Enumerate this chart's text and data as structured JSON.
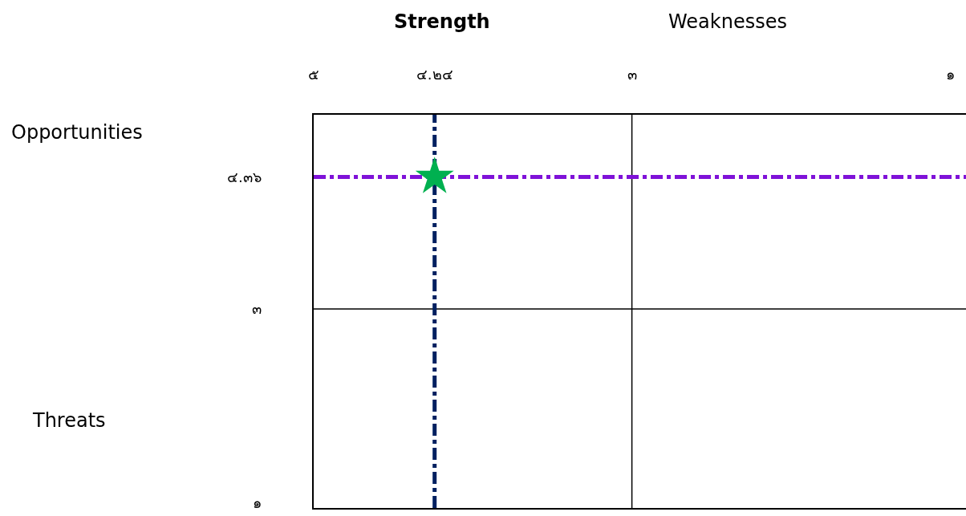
{
  "chart_data": {
    "type": "scatter",
    "annotations": [
      "Strength",
      "Weaknesses",
      "Opportunities",
      "Threats"
    ],
    "series": [
      {
        "color": "#00b050",
        "x": [
          4.24
        ],
        "values": [
          4.36
        ]
      }
    ],
    "marker": "star",
    "legend": false,
    "grid": false,
    "xlim": [
      5,
      0.9
    ],
    "xticks": [
      {
        "value": 5,
        "label": "๕"
      },
      {
        "value": 4.24,
        "label": "๔.๒๔"
      },
      {
        "value": 3,
        "label": "๓"
      },
      {
        "value": 1,
        "label": "๑"
      }
    ],
    "ylim": [
      0.95,
      5
    ],
    "yticks": [
      {
        "value": 4.36,
        "label": "๔.๓๖"
      },
      {
        "value": 3,
        "label": "๓"
      },
      {
        "value": 1,
        "label": "๑"
      }
    ],
    "ref_lines": [
      {
        "axis": "x",
        "value": 3,
        "color": "#000000",
        "line_style": "solid"
      },
      {
        "axis": "y",
        "value": 3,
        "color": "#000000",
        "line_style": "solid"
      },
      {
        "axis": "x",
        "value": 4.24,
        "color": "#002060",
        "line_style": "dashed"
      },
      {
        "axis": "y",
        "value": 4.36,
        "color": "#7f12d8",
        "line_style": "dashed"
      }
    ]
  }
}
